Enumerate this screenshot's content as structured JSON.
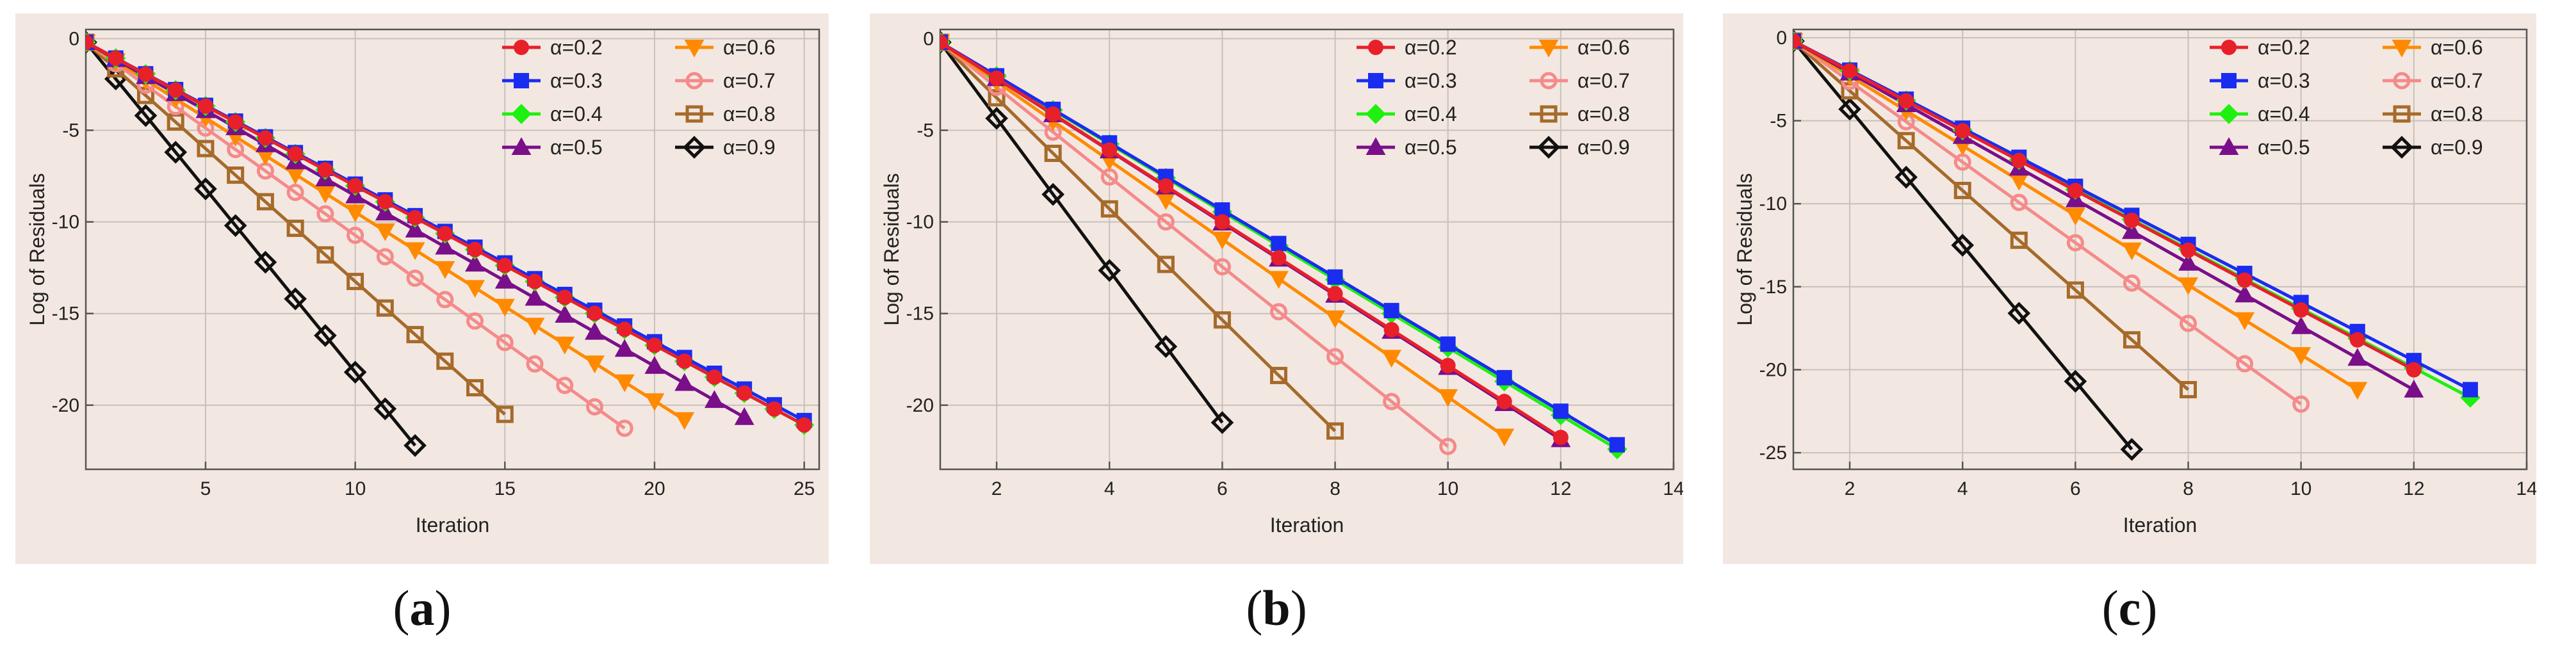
{
  "series_style": {
    "0.2": {
      "color": "#e8202a",
      "marker": "circle",
      "fill": true
    },
    "0.3": {
      "color": "#1a2cf0",
      "marker": "square",
      "fill": true
    },
    "0.4": {
      "color": "#1ef00f",
      "marker": "diamond",
      "fill": true
    },
    "0.5": {
      "color": "#7a0f8a",
      "marker": "triangle-up",
      "fill": true
    },
    "0.6": {
      "color": "#ff8a00",
      "marker": "triangle-down",
      "fill": true
    },
    "0.7": {
      "color": "#f58a8a",
      "marker": "circle",
      "fill": false
    },
    "0.8": {
      "color": "#a66a2a",
      "marker": "square",
      "fill": false
    },
    "0.9": {
      "color": "#111111",
      "marker": "diamond",
      "fill": false
    }
  },
  "chart_data": [
    {
      "type": "line",
      "caption_letter": "a",
      "xlabel": "Iteration",
      "ylabel": "Log of Residuals",
      "xlim": [
        1,
        25.5
      ],
      "ylim": [
        -23.5,
        0.5
      ],
      "xticks": [
        5,
        10,
        15,
        20,
        25
      ],
      "yticks": [
        0,
        -5,
        -10,
        -15,
        -20
      ],
      "series": [
        {
          "name": "α=0.2",
          "alpha": "0.2",
          "x_end": 25,
          "slope": -0.87
        },
        {
          "name": "α=0.3",
          "alpha": "0.3",
          "x_end": 25,
          "slope": -0.86
        },
        {
          "name": "α=0.4",
          "alpha": "0.4",
          "x_end": 25,
          "slope": -0.87
        },
        {
          "name": "α=0.5",
          "alpha": "0.5",
          "x_end": 23,
          "slope": -0.93
        },
        {
          "name": "α=0.6",
          "alpha": "0.6",
          "x_end": 21,
          "slope": -1.03
        },
        {
          "name": "α=0.7",
          "alpha": "0.7",
          "x_end": 19,
          "slope": -1.17
        },
        {
          "name": "α=0.8",
          "alpha": "0.8",
          "x_end": 15,
          "slope": -1.45
        },
        {
          "name": "α=0.9",
          "alpha": "0.9",
          "x_end": 12,
          "slope": -2.0
        }
      ]
    },
    {
      "type": "line",
      "caption_letter": "b",
      "xlabel": "Iteration",
      "ylabel": "Log of Residuals",
      "xlim": [
        1,
        14
      ],
      "ylim": [
        -23.5,
        0.5
      ],
      "xticks": [
        2,
        4,
        6,
        8,
        10,
        12,
        14
      ],
      "yticks": [
        0,
        -5,
        -10,
        -15,
        -20
      ],
      "series": [
        {
          "name": "α=0.2",
          "alpha": "0.2",
          "x_end": 12,
          "slope": -1.96
        },
        {
          "name": "α=0.3",
          "alpha": "0.3",
          "x_end": 13,
          "slope": -1.83
        },
        {
          "name": "α=0.4",
          "alpha": "0.4",
          "x_end": 13,
          "slope": -1.85
        },
        {
          "name": "α=0.5",
          "alpha": "0.5",
          "x_end": 12,
          "slope": -1.97
        },
        {
          "name": "α=0.6",
          "alpha": "0.6",
          "x_end": 11,
          "slope": -2.15
        },
        {
          "name": "α=0.7",
          "alpha": "0.7",
          "x_end": 10,
          "slope": -2.45
        },
        {
          "name": "α=0.8",
          "alpha": "0.8",
          "x_end": 8,
          "slope": -3.03
        },
        {
          "name": "α=0.9",
          "alpha": "0.9",
          "x_end": 6,
          "slope": -4.15
        }
      ]
    },
    {
      "type": "line",
      "caption_letter": "c",
      "xlabel": "Iteration",
      "ylabel": "Log of Residuals",
      "xlim": [
        1,
        14
      ],
      "ylim": [
        -26,
        0.5
      ],
      "xticks": [
        2,
        4,
        6,
        8,
        10,
        12,
        14
      ],
      "yticks": [
        0,
        -5,
        -10,
        -15,
        -20,
        -25
      ],
      "series": [
        {
          "name": "α=0.2",
          "alpha": "0.2",
          "x_end": 12,
          "slope": -1.8
        },
        {
          "name": "α=0.3",
          "alpha": "0.3",
          "x_end": 13,
          "slope": -1.75
        },
        {
          "name": "α=0.4",
          "alpha": "0.4",
          "x_end": 13,
          "slope": -1.79
        },
        {
          "name": "α=0.5",
          "alpha": "0.5",
          "x_end": 12,
          "slope": -1.91
        },
        {
          "name": "α=0.6",
          "alpha": "0.6",
          "x_end": 11,
          "slope": -2.1
        },
        {
          "name": "α=0.7",
          "alpha": "0.7",
          "x_end": 10,
          "slope": -2.43
        },
        {
          "name": "α=0.8",
          "alpha": "0.8",
          "x_end": 8,
          "slope": -3.0
        },
        {
          "name": "α=0.9",
          "alpha": "0.9",
          "x_end": 7,
          "slope": -4.1
        }
      ]
    }
  ]
}
